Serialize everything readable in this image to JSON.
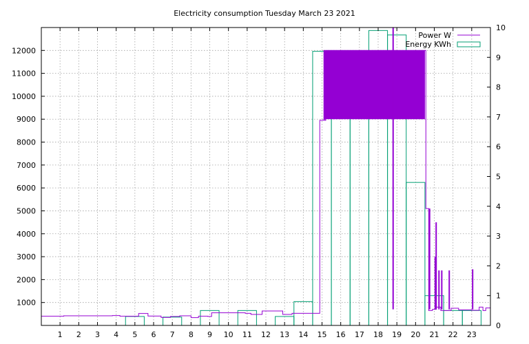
{
  "chart_data": {
    "type": "line",
    "title": "Electricity consumption Tuesday March 23 2021",
    "xlabel": "",
    "ylabel": "",
    "xlim": [
      0,
      24
    ],
    "ylim": [
      0,
      13000
    ],
    "y2lim": [
      0,
      10
    ],
    "x_ticks": [
      "1",
      "2",
      "3",
      "4",
      "5",
      "6",
      "7",
      "8",
      "9",
      "10",
      "11",
      "12",
      "13",
      "14",
      "15",
      "16",
      "17",
      "18",
      "19",
      "20",
      "21",
      "22",
      "23"
    ],
    "y_ticks": [
      "1000",
      "2000",
      "3000",
      "4000",
      "5000",
      "6000",
      "7000",
      "8000",
      "9000",
      "10000",
      "11000",
      "12000"
    ],
    "y2_ticks": [
      "0",
      "1",
      "2",
      "3",
      "4",
      "5",
      "6",
      "7",
      "8",
      "9",
      "10"
    ],
    "grid": true,
    "legend_position": "top-right",
    "colors": {
      "power": "#9400d3",
      "energy": "#009e73"
    },
    "series": [
      {
        "name": "Power W",
        "axis": "y",
        "style": "step-line",
        "points": [
          [
            0,
            400
          ],
          [
            1.2,
            420
          ],
          [
            3.8,
            430
          ],
          [
            4.2,
            400
          ],
          [
            5.2,
            520
          ],
          [
            5.7,
            410
          ],
          [
            6.4,
            350
          ],
          [
            6.9,
            390
          ],
          [
            7.4,
            420
          ],
          [
            8.0,
            340
          ],
          [
            8.4,
            400
          ],
          [
            8.9,
            390
          ],
          [
            9.1,
            550
          ],
          [
            10.9,
            530
          ],
          [
            11.2,
            480
          ],
          [
            11.8,
            630
          ],
          [
            12.9,
            480
          ],
          [
            13.4,
            530
          ],
          [
            14.8,
            530
          ],
          [
            14.88,
            8950
          ],
          [
            15.1,
            12000
          ],
          [
            15.15,
            8950
          ],
          [
            15.2,
            12000
          ],
          [
            16.8,
            12000
          ],
          [
            18.3,
            12000
          ],
          [
            18.7,
            12000
          ],
          [
            20.5,
            12000
          ],
          [
            20.55,
            5100
          ],
          [
            20.7,
            650
          ],
          [
            20.9,
            700
          ],
          [
            21.1,
            800
          ],
          [
            21.35,
            650
          ],
          [
            21.9,
            750
          ],
          [
            22.3,
            680
          ],
          [
            23.0,
            660
          ],
          [
            23.4,
            800
          ],
          [
            23.6,
            650
          ],
          [
            23.75,
            760
          ],
          [
            24.0,
            760
          ]
        ],
        "spikes": [
          {
            "x": 18.8,
            "y": 13000
          },
          {
            "x": 20.75,
            "y": 5100
          },
          {
            "x": 21.05,
            "y": 3000
          },
          {
            "x": 21.1,
            "y": 4500
          },
          {
            "x": 21.25,
            "y": 2400
          },
          {
            "x": 21.4,
            "y": 2400
          },
          {
            "x": 21.8,
            "y": 2400
          },
          {
            "x": 23.05,
            "y": 2450
          }
        ],
        "filled_band": {
          "x0": 15.1,
          "x1": 20.5,
          "low": 9000,
          "high": 12000
        }
      },
      {
        "name": "Energy KWh",
        "axis": "y2",
        "style": "boxes",
        "bars": [
          {
            "x": 5,
            "value": 0.3
          },
          {
            "x": 7,
            "value": 0.28
          },
          {
            "x": 9,
            "value": 0.5
          },
          {
            "x": 11,
            "value": 0.5
          },
          {
            "x": 13,
            "value": 0.3
          },
          {
            "x": 14,
            "value": 0.8
          },
          {
            "x": 15,
            "value": 9.2
          },
          {
            "x": 16,
            "value": 9.2
          },
          {
            "x": 17,
            "value": 9.1
          },
          {
            "x": 18,
            "value": 9.9
          },
          {
            "x": 19,
            "value": 9.75
          },
          {
            "x": 20,
            "value": 4.8
          },
          {
            "x": 21,
            "value": 1.0
          },
          {
            "x": 22,
            "value": 0.5
          },
          {
            "x": 23,
            "value": 0.5
          }
        ]
      }
    ]
  }
}
